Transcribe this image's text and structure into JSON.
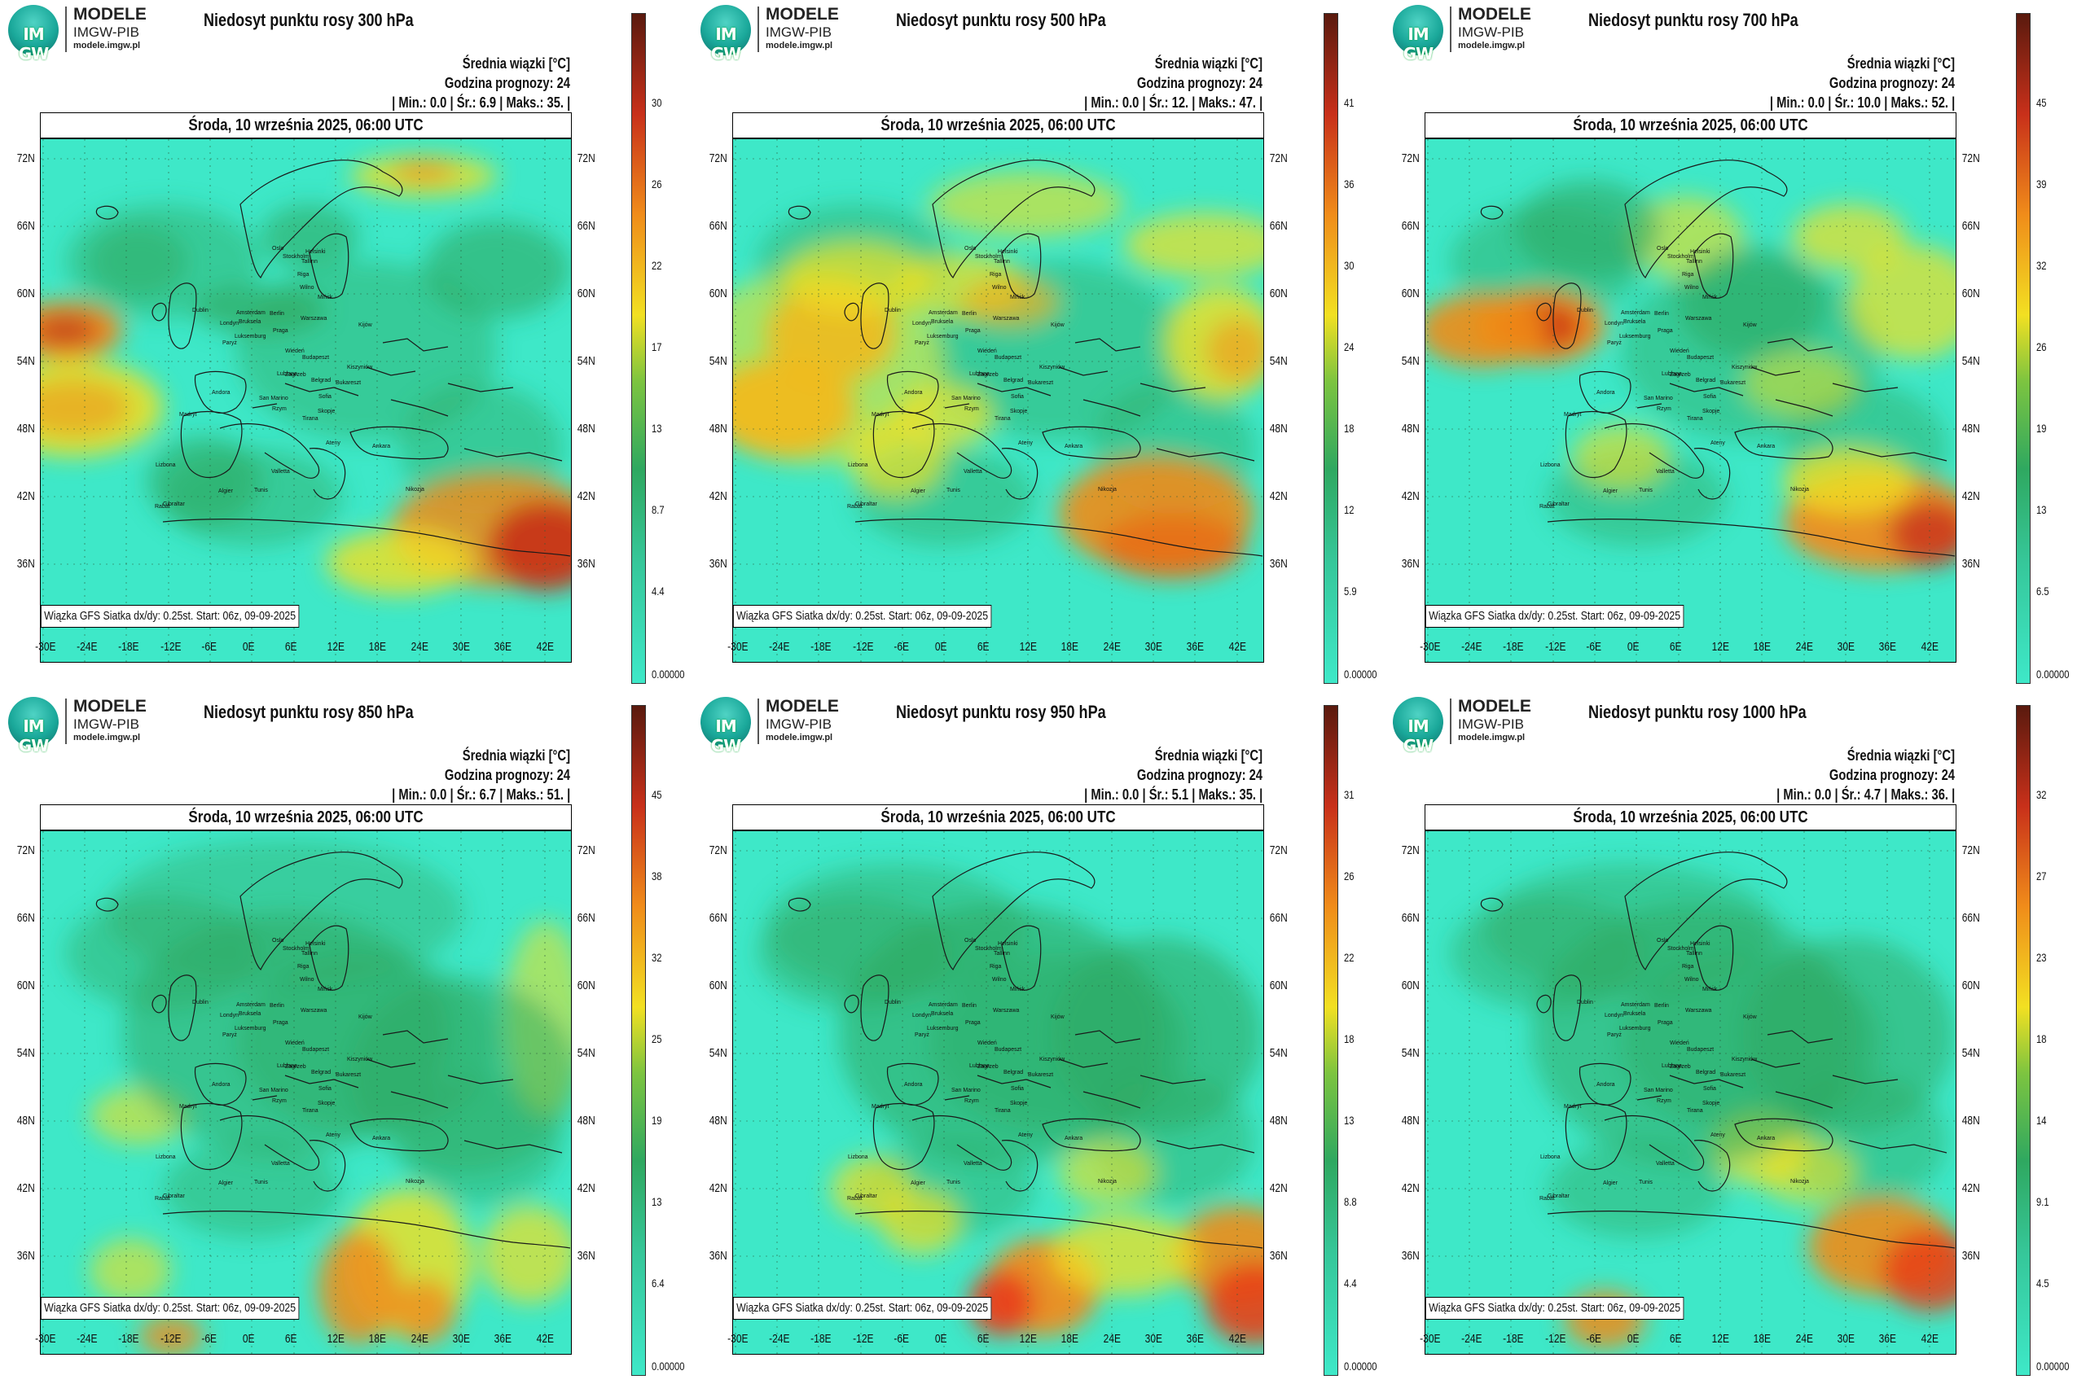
{
  "logo": {
    "letters": "IM GW",
    "name": "MODELE",
    "org": "IMGW-PIB",
    "url": "modele.imgw.pl"
  },
  "common": {
    "units": "Średnia wiązki [°C]",
    "forecast_hour": "Godzina prognozy: 24",
    "date": "Środa, 10 września 2025, 06:00 UTC",
    "credit": "Wiązka GFS Siatka dx/dy: 0.25st. Start: 06z, 09-09-2025",
    "lat_labels": [
      "72N",
      "66N",
      "60N",
      "54N",
      "48N",
      "42N",
      "36N"
    ],
    "lon_labels": [
      "-30E",
      "-24E",
      "-18E",
      "-12E",
      "-6E",
      "0E",
      "6E",
      "12E",
      "18E",
      "24E",
      "30E",
      "36E",
      "42E"
    ],
    "cities": [
      "Oslo",
      "Stockholm",
      "Helsinki",
      "Tallinn",
      "Riga",
      "Wilno",
      "Mińsk",
      "Warszawa",
      "Berlin",
      "Praga",
      "Amsterdam",
      "Bruksela",
      "Londyn",
      "Dublin",
      "Paryż",
      "Luksemburg",
      "Wiedeń",
      "Budapeszt",
      "Zagrzeb",
      "Lublana",
      "Belgrad",
      "Bukareszt",
      "Sofia",
      "Skopje",
      "Tirana",
      "Rzym",
      "Madryt",
      "Lizbona",
      "Algier",
      "Tunis",
      "Ankara",
      "Ateny",
      "Kiszyniów",
      "Kijów",
      "Andora",
      "San Marino",
      "Valletta",
      "Rabat",
      "Gibraltar",
      "Nikozja"
    ]
  },
  "panels": [
    {
      "title": "Niedosyt punktu rosy 300 hPa",
      "stats": "| Min.:    0.0 | Śr.:    6.9 | Maks.:   35. |",
      "colorbar": [
        "30",
        "26",
        "22",
        "17",
        "13",
        "8.7",
        "4.4",
        "0.00000"
      ]
    },
    {
      "title": "Niedosyt punktu rosy 500 hPa",
      "stats": "| Min.:    0.0 | Śr.:   12. | Maks.:   47. |",
      "colorbar": [
        "41",
        "36",
        "30",
        "24",
        "18",
        "12",
        "5.9",
        "0.00000"
      ]
    },
    {
      "title": "Niedosyt punktu rosy 700 hPa",
      "stats": "| Min.:    0.0 | Śr.:   10.0 | Maks.:   52. |",
      "colorbar": [
        "45",
        "39",
        "32",
        "26",
        "19",
        "13",
        "6.5",
        "0.00000"
      ]
    },
    {
      "title": "Niedosyt punktu rosy 850 hPa",
      "stats": "| Min.:    0.0 | Śr.:    6.7 | Maks.:   51. |",
      "colorbar": [
        "45",
        "38",
        "32",
        "25",
        "19",
        "13",
        "6.4",
        "0.00000"
      ]
    },
    {
      "title": "Niedosyt punktu rosy 950 hPa",
      "stats": "| Min.:    0.0 | Śr.:    5.1 | Maks.:   35. |",
      "colorbar": [
        "31",
        "26",
        "22",
        "18",
        "13",
        "8.8",
        "4.4",
        "0.00000"
      ]
    },
    {
      "title": "Niedosyt punktu rosy 1000 hPa",
      "stats": "| Min.:    0.0 | Śr.:    4.7 | Maks.:   36. |",
      "colorbar": [
        "32",
        "27",
        "23",
        "18",
        "14",
        "9.1",
        "4.5",
        "0.00000"
      ]
    }
  ],
  "colors": {
    "low": "#3ee8c8",
    "mid": "#2fa860",
    "yellow": "#f2e022",
    "orange": "#f08c1a",
    "red": "#c8301a",
    "max": "#5a1a0e"
  }
}
